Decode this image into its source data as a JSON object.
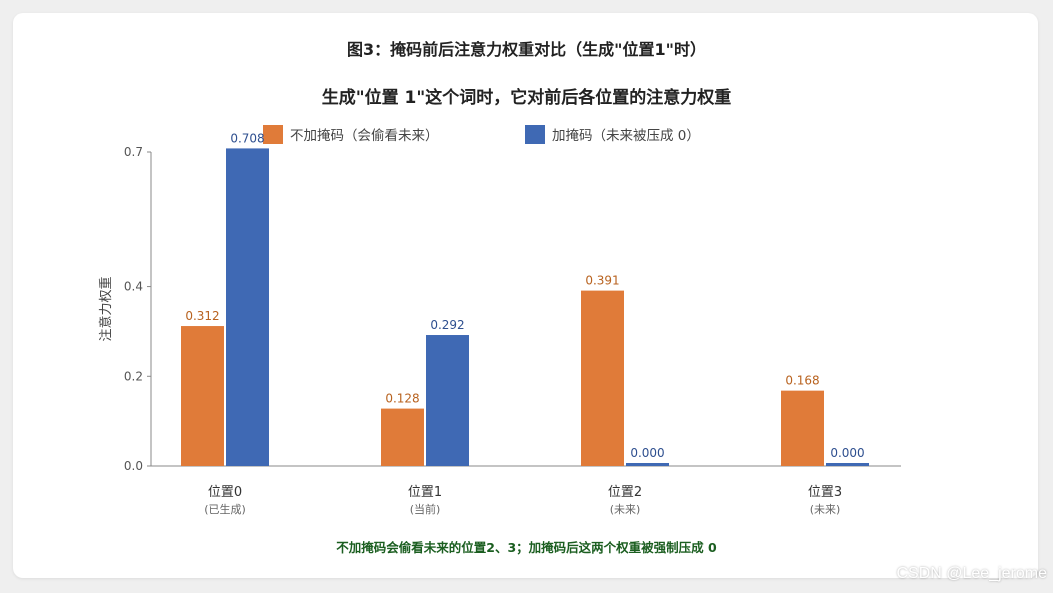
{
  "figure_title": "图3：掩码前后注意力权重对比（生成\"位置1\"时）",
  "note": "不加掩码会偷看未来的位置2、3；加掩码后这两个权重被强制压成 0",
  "watermark": "CSDN @Lee_jerome",
  "colors": {
    "series_unmasked": "#e07b39",
    "series_masked": "#3f69b4",
    "unmasked_label": "#b8621f",
    "masked_label": "#2e4f8f",
    "note_text": "#1b5e20"
  },
  "chart_data": {
    "type": "bar",
    "title": "生成\"位置 1\"这个词时，它对前后各位置的注意力权重",
    "ylabel": "注意力权重",
    "xlabel": "",
    "categories": [
      "位置0",
      "位置1",
      "位置2",
      "位置3"
    ],
    "category_notes": [
      "(已生成)",
      "(当前)",
      "(未来)",
      "(未来)"
    ],
    "series": [
      {
        "name": "不加掩码（会偷看未来）",
        "values": [
          0.312,
          0.128,
          0.391,
          0.168
        ]
      },
      {
        "name": "加掩码（未来被压成 0）",
        "values": [
          0.708,
          0.292,
          0.0,
          0.0
        ]
      }
    ],
    "value_labels": [
      [
        "0.312",
        "0.128",
        "0.391",
        "0.168"
      ],
      [
        "0.708",
        "0.292",
        "0.000",
        "0.000"
      ]
    ],
    "yticks": [
      "0.0",
      "0.2",
      "0.4",
      "0.7"
    ],
    "ylim": [
      0,
      0.7
    ],
    "grid": false,
    "legend_position": "top"
  }
}
